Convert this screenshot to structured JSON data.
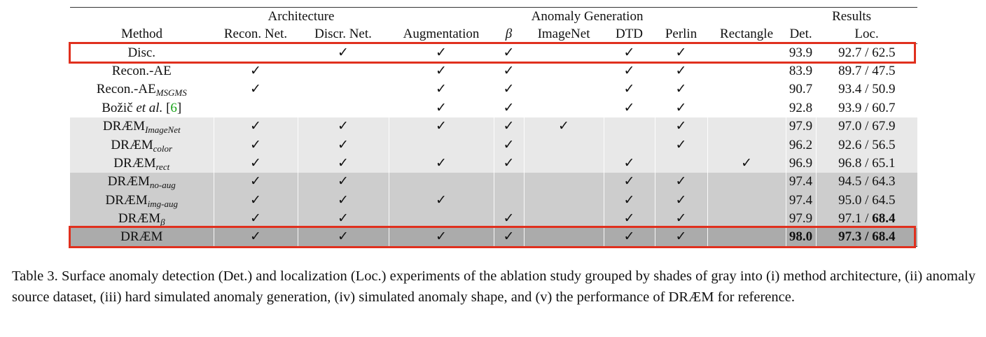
{
  "table": {
    "group_headers": [
      {
        "text": "Architecture",
        "span": 2
      },
      {
        "text": "Anomaly Generation",
        "span": 6
      },
      {
        "text": "Results",
        "span": 2
      }
    ],
    "columns": [
      {
        "text": "Method"
      },
      {
        "text": "Recon. Net."
      },
      {
        "text": "Discr. Net."
      },
      {
        "text": "Augmentation"
      },
      {
        "text": "β",
        "style": "italic"
      },
      {
        "text": "ImageNet"
      },
      {
        "text": "DTD"
      },
      {
        "text": "Perlin"
      },
      {
        "text": "Rectangle"
      },
      {
        "text": "Det."
      },
      {
        "text": "Loc."
      }
    ],
    "loc_separator": "/",
    "rows": [
      {
        "group": 0,
        "highlight": true,
        "method": [
          {
            "text": "Disc."
          }
        ],
        "marks": [
          null,
          "✓",
          "✓",
          "✓",
          null,
          "✓",
          "✓",
          null
        ],
        "det": "93.9",
        "loc": [
          "92.7",
          "62.5"
        ]
      },
      {
        "group": 0,
        "method": [
          {
            "text": "Recon.-AE"
          }
        ],
        "marks": [
          "✓",
          null,
          "✓",
          "✓",
          null,
          "✓",
          "✓",
          null
        ],
        "det": "83.9",
        "loc": [
          "89.7",
          "47.5"
        ]
      },
      {
        "group": 0,
        "method": [
          {
            "text": "Recon.-AE"
          },
          {
            "text": "MSGMS",
            "style": "sub"
          }
        ],
        "marks": [
          "✓",
          null,
          "✓",
          "✓",
          null,
          "✓",
          "✓",
          null
        ],
        "det": "90.7",
        "loc": [
          "93.4",
          "50.9"
        ]
      },
      {
        "group": 0,
        "method": [
          {
            "text": "Božič "
          },
          {
            "text": "et al.",
            "style": "italic"
          },
          {
            "text": " ["
          },
          {
            "text": "6",
            "style": "cite"
          },
          {
            "text": "]"
          }
        ],
        "marks": [
          null,
          null,
          "✓",
          "✓",
          null,
          "✓",
          "✓",
          null
        ],
        "det": "92.8",
        "loc": [
          "93.9",
          "60.7"
        ]
      },
      {
        "group": 1,
        "method": [
          {
            "text": "DRÆM"
          },
          {
            "text": "ImageNet",
            "style": "sub"
          }
        ],
        "marks": [
          "✓",
          "✓",
          "✓",
          "✓",
          "✓",
          null,
          "✓",
          null
        ],
        "det": "97.9",
        "loc": [
          "97.0",
          "67.9"
        ]
      },
      {
        "group": 1,
        "method": [
          {
            "text": "DRÆM"
          },
          {
            "text": "color",
            "style": "sub"
          }
        ],
        "marks": [
          "✓",
          "✓",
          null,
          "✓",
          null,
          null,
          "✓",
          null
        ],
        "det": "96.2",
        "loc": [
          "92.6",
          "56.5"
        ]
      },
      {
        "group": 1,
        "method": [
          {
            "text": "DRÆM"
          },
          {
            "text": "rect",
            "style": "sub"
          }
        ],
        "marks": [
          "✓",
          "✓",
          "✓",
          "✓",
          null,
          "✓",
          null,
          "✓"
        ],
        "det": "96.9",
        "loc": [
          "96.8",
          "65.1"
        ]
      },
      {
        "group": 2,
        "method": [
          {
            "text": "DRÆM"
          },
          {
            "text": "no-aug",
            "style": "sub"
          }
        ],
        "marks": [
          "✓",
          "✓",
          null,
          null,
          null,
          "✓",
          "✓",
          null
        ],
        "det": "97.4",
        "loc": [
          "94.5",
          "64.3"
        ]
      },
      {
        "group": 2,
        "method": [
          {
            "text": "DRÆM"
          },
          {
            "text": "img-aug",
            "style": "sub"
          }
        ],
        "marks": [
          "✓",
          "✓",
          "✓",
          null,
          null,
          "✓",
          "✓",
          null
        ],
        "det": "97.4",
        "loc": [
          "95.0",
          "64.5"
        ]
      },
      {
        "group": 2,
        "method": [
          {
            "text": "DRÆM"
          },
          {
            "text": "β",
            "style": "sub"
          }
        ],
        "marks": [
          "✓",
          "✓",
          null,
          "✓",
          null,
          "✓",
          "✓",
          null
        ],
        "det": "97.9",
        "loc": [
          "97.1",
          "68.4"
        ],
        "bold": [
          "loc.1"
        ]
      },
      {
        "group": 3,
        "highlight": true,
        "method": [
          {
            "text": "DRÆM"
          }
        ],
        "marks": [
          "✓",
          "✓",
          "✓",
          "✓",
          null,
          "✓",
          "✓",
          null
        ],
        "det": "98.0",
        "loc": [
          "97.3",
          "68.4"
        ],
        "bold": [
          "det",
          "loc.0",
          "loc.1"
        ]
      }
    ]
  },
  "caption": "Table 3. Surface anomaly detection (Det.)  and localization (Loc.)  experiments of the ablation study grouped by shades of gray into (i) method architecture, (ii) anomaly source dataset, (iii) hard simulated anomaly generation, (iv) simulated anomaly shape, and (v) the performance of DRÆM for reference."
}
